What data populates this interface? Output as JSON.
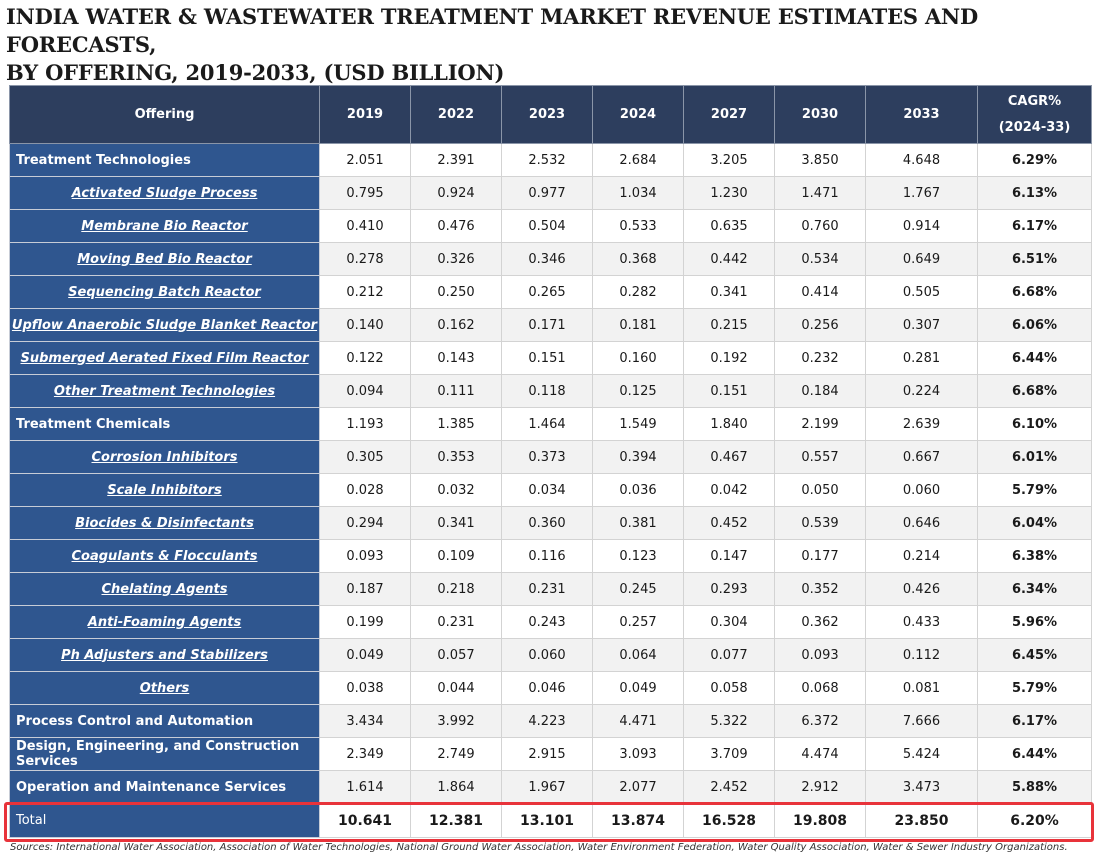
{
  "title_line1": "INDIA WATER & WASTEWATER TREATMENT MARKET REVENUE ESTIMATES AND FORECASTS,",
  "title_line2": "BY OFFERING, 2019-2033, (USD BILLION)",
  "source": "Sources: International Water Association, Association of Water Technologies, National Ground Water Association, Water Environment Federation, Water Quality Association, Water & Sewer Industry Organizations.",
  "colors": {
    "header_bg": "#2d3e5e",
    "offering_bg": "#2f568f",
    "highlight": "#e8333a"
  },
  "chart_data": {
    "type": "table",
    "columns": [
      "Offering",
      "2019",
      "2022",
      "2023",
      "2024",
      "2027",
      "2030",
      "2033"
    ],
    "cagr_header": [
      "CAGR%",
      "(2024-33)"
    ],
    "rows": [
      {
        "label": "Treatment Technologies",
        "level": "parent",
        "values": [
          "2.051",
          "2.391",
          "2.532",
          "2.684",
          "3.205",
          "3.850",
          "4.648"
        ],
        "cagr": "6.29%"
      },
      {
        "label": "Activated Sludge Process",
        "level": "sub",
        "values": [
          "0.795",
          "0.924",
          "0.977",
          "1.034",
          "1.230",
          "1.471",
          "1.767"
        ],
        "cagr": "6.13%"
      },
      {
        "label": "Membrane Bio Reactor",
        "level": "sub",
        "values": [
          "0.410",
          "0.476",
          "0.504",
          "0.533",
          "0.635",
          "0.760",
          "0.914"
        ],
        "cagr": "6.17%"
      },
      {
        "label": "Moving Bed Bio Reactor",
        "level": "sub",
        "values": [
          "0.278",
          "0.326",
          "0.346",
          "0.368",
          "0.442",
          "0.534",
          "0.649"
        ],
        "cagr": "6.51%"
      },
      {
        "label": "Sequencing Batch Reactor",
        "level": "sub",
        "values": [
          "0.212",
          "0.250",
          "0.265",
          "0.282",
          "0.341",
          "0.414",
          "0.505"
        ],
        "cagr": "6.68%"
      },
      {
        "label": "Upflow Anaerobic Sludge Blanket Reactor",
        "level": "sub",
        "values": [
          "0.140",
          "0.162",
          "0.171",
          "0.181",
          "0.215",
          "0.256",
          "0.307"
        ],
        "cagr": "6.06%"
      },
      {
        "label": "Submerged Aerated Fixed Film Reactor",
        "level": "sub",
        "values": [
          "0.122",
          "0.143",
          "0.151",
          "0.160",
          "0.192",
          "0.232",
          "0.281"
        ],
        "cagr": "6.44%"
      },
      {
        "label": "Other Treatment Technologies",
        "level": "sub",
        "values": [
          "0.094",
          "0.111",
          "0.118",
          "0.125",
          "0.151",
          "0.184",
          "0.224"
        ],
        "cagr": "6.68%"
      },
      {
        "label": "Treatment Chemicals",
        "level": "parent",
        "values": [
          "1.193",
          "1.385",
          "1.464",
          "1.549",
          "1.840",
          "2.199",
          "2.639"
        ],
        "cagr": "6.10%"
      },
      {
        "label": "Corrosion Inhibitors",
        "level": "sub",
        "values": [
          "0.305",
          "0.353",
          "0.373",
          "0.394",
          "0.467",
          "0.557",
          "0.667"
        ],
        "cagr": "6.01%"
      },
      {
        "label": "Scale Inhibitors",
        "level": "sub",
        "values": [
          "0.028",
          "0.032",
          "0.034",
          "0.036",
          "0.042",
          "0.050",
          "0.060"
        ],
        "cagr": "5.79%"
      },
      {
        "label": "Biocides & Disinfectants",
        "level": "sub",
        "values": [
          "0.294",
          "0.341",
          "0.360",
          "0.381",
          "0.452",
          "0.539",
          "0.646"
        ],
        "cagr": "6.04%"
      },
      {
        "label": "Coagulants & Flocculants",
        "level": "sub",
        "values": [
          "0.093",
          "0.109",
          "0.116",
          "0.123",
          "0.147",
          "0.177",
          "0.214"
        ],
        "cagr": "6.38%"
      },
      {
        "label": "Chelating Agents",
        "level": "sub",
        "values": [
          "0.187",
          "0.218",
          "0.231",
          "0.245",
          "0.293",
          "0.352",
          "0.426"
        ],
        "cagr": "6.34%"
      },
      {
        "label": "Anti-Foaming Agents",
        "level": "sub",
        "values": [
          "0.199",
          "0.231",
          "0.243",
          "0.257",
          "0.304",
          "0.362",
          "0.433"
        ],
        "cagr": "5.96%"
      },
      {
        "label": "Ph Adjusters and Stabilizers",
        "level": "sub",
        "values": [
          "0.049",
          "0.057",
          "0.060",
          "0.064",
          "0.077",
          "0.093",
          "0.112"
        ],
        "cagr": "6.45%"
      },
      {
        "label": "Others",
        "level": "sub",
        "values": [
          "0.038",
          "0.044",
          "0.046",
          "0.049",
          "0.058",
          "0.068",
          "0.081"
        ],
        "cagr": "5.79%"
      },
      {
        "label": "Process Control and Automation",
        "level": "parent",
        "values": [
          "3.434",
          "3.992",
          "4.223",
          "4.471",
          "5.322",
          "6.372",
          "7.666"
        ],
        "cagr": "6.17%"
      },
      {
        "label": "Design, Engineering, and Construction Services",
        "level": "parent",
        "values": [
          "2.349",
          "2.749",
          "2.915",
          "3.093",
          "3.709",
          "4.474",
          "5.424"
        ],
        "cagr": "6.44%"
      },
      {
        "label": "Operation and Maintenance Services",
        "level": "parent",
        "values": [
          "1.614",
          "1.864",
          "1.967",
          "2.077",
          "2.452",
          "2.912",
          "3.473"
        ],
        "cagr": "5.88%"
      }
    ],
    "total": {
      "label": "Total",
      "values": [
        "10.641",
        "12.381",
        "13.101",
        "13.874",
        "16.528",
        "19.808",
        "23.850"
      ],
      "cagr": "6.20%"
    }
  }
}
